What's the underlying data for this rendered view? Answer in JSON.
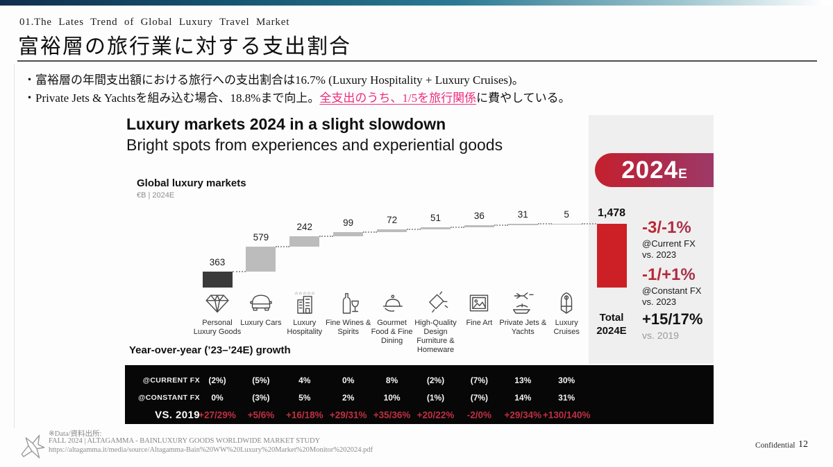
{
  "page": {
    "eyebrow": "01.The Lates Trend of Global Luxury Travel Market",
    "title": "富裕層の旅行業に対する支出割合",
    "bullet1": "・富裕層の年間支出額における旅行への支出割合は16.7% (Luxury Hospitality + Luxury Cruises)。",
    "bullet2_prefix": "・Private Jets & Yachtsを組み込む場合、18.8%まで向上。",
    "bullet2_highlight": "全支出のうち、1/5を旅行関係",
    "bullet2_suffix": "に費やしている。"
  },
  "chart": {
    "title": "Luxury markets 2024 in a slight slowdown",
    "subtitle": "Bright spots from experiences and experiential goods",
    "legend_title": "Global luxury markets",
    "legend_unit": "€B | 2024E",
    "badge_year": "2024",
    "badge_sub": "E",
    "growth_title": "Year-over-year (’23–’24E) growth",
    "annotations": [
      {
        "value": "-3/-1%",
        "line1": "@Current FX",
        "line2": "vs. 2023"
      },
      {
        "value": "-1/+1%",
        "line1": "@Constant FX",
        "line2": "vs. 2023"
      },
      {
        "value": "+15/17%",
        "line1": "vs. 2019"
      }
    ]
  },
  "chart_data": {
    "type": "bar",
    "variant": "waterfall",
    "title": "Global luxury markets",
    "unit": "€B | 2024E",
    "categories": [
      {
        "label": "Personal Luxury Goods",
        "icon": "diamond-icon"
      },
      {
        "label": "Luxury Cars",
        "icon": "car-icon"
      },
      {
        "label": "Luxury Hospitality",
        "icon": "hotel-icon"
      },
      {
        "label": "Fine Wines & Spirits",
        "icon": "wine-icon"
      },
      {
        "label": "Gourmet Food & Fine Dining",
        "icon": "cloche-icon"
      },
      {
        "label": "High-Quality Design Furniture & Homeware",
        "icon": "spotlight-icon"
      },
      {
        "label": "Fine Art",
        "icon": "picture-frame-icon"
      },
      {
        "label": "Private Jets & Yachts",
        "icon": "jet-yacht-icon"
      },
      {
        "label": "Luxury Cruises",
        "icon": "cruise-ship-icon"
      }
    ],
    "values": [
      363,
      579,
      242,
      99,
      72,
      51,
      36,
      31,
      5
    ],
    "value_labels": [
      "363",
      "579",
      "242",
      "99",
      "72",
      "51",
      "36",
      "31",
      "5"
    ],
    "total": {
      "value": 1478,
      "label": "1,478",
      "name_line1": "Total",
      "name_line2": "2024E"
    },
    "colors": {
      "first_bar": "#3a3a3a",
      "mid_bar": "#bcbcbc",
      "total_bar": "#cc2026",
      "badge_left": "#c5202d",
      "badge_right": "#9d3a68",
      "vs2019_red": "#c22f42",
      "highlight_pink": "#ee2b7c"
    },
    "growth_table": {
      "rows": [
        {
          "label": "@CURRENT FX",
          "style": "white",
          "values": [
            "(2%)",
            "(5%)",
            "4%",
            "0%",
            "8%",
            "(2%)",
            "(7%)",
            "13%",
            "30%"
          ]
        },
        {
          "label": "@CONSTANT FX",
          "style": "white",
          "values": [
            "0%",
            "(3%)",
            "5%",
            "2%",
            "10%",
            "(1%)",
            "(7%)",
            "14%",
            "31%"
          ]
        },
        {
          "label": "VS. 2019",
          "style": "red",
          "values": [
            "+27/29%",
            "+5/6%",
            "+16/18%",
            "+29/31%",
            "+35/36%",
            "+20/22%",
            "-2/0%",
            "+29/34%",
            "+130/140%"
          ]
        }
      ]
    }
  },
  "footer": {
    "source_label": "※Data/資料出所:",
    "source_line1": "FALL 2024 | ALTAGAMMA - BAINLUXURY GOODS WORLDWIDE MARKET STUDY",
    "source_line2": "https://altagamma.it/media/source/Altagamma-Bain%20WW%20Luxury%20Market%20Monitor%202024.pdf",
    "confidential": "Confidential",
    "page_number": "12"
  }
}
